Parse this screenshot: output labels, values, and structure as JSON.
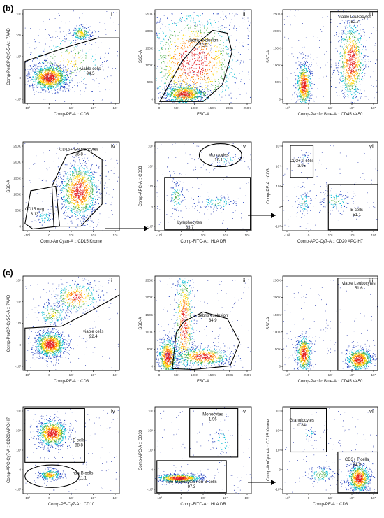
{
  "figure": {
    "sections": [
      {
        "label": "(b)",
        "top": 0
      },
      {
        "label": "(c)",
        "top": 378
      }
    ]
  },
  "chart_data": [
    {
      "id": "b-i",
      "type": "scatter",
      "panel": "(b)",
      "roman": "i",
      "xlabel": "Comp-PE-A :: CD3",
      "ylabel": "Comp-PerCP-Cy5-5-A :: 7AAD",
      "xticks": [
        "-10³",
        "0",
        "10³",
        "10⁴",
        "10⁵"
      ],
      "yticks": [
        "-10³",
        "0",
        "10³",
        "10⁴",
        "10⁵"
      ],
      "gates": [
        {
          "name": "viable cells",
          "value": "94.5"
        }
      ],
      "clusters": [
        {
          "x": 0.27,
          "y": 0.72,
          "sx": 0.1,
          "sy": 0.07,
          "n": 1200
        },
        {
          "x": 0.6,
          "y": 0.25,
          "sx": 0.05,
          "sy": 0.04,
          "n": 250
        },
        {
          "x": 0.45,
          "y": 0.55,
          "sx": 0.2,
          "sy": 0.15,
          "n": 250
        }
      ]
    },
    {
      "id": "b-ii",
      "type": "scatter",
      "panel": "(b)",
      "roman": "ii",
      "xlabel": "FSC-A",
      "ylabel": "SSC-A",
      "xticks": [
        "0",
        "50K",
        "100K",
        "150K",
        "200K",
        "250K"
      ],
      "yticks": [
        "0",
        "50K",
        "100K",
        "150K",
        "200K",
        "250K"
      ],
      "gates": [
        {
          "name": "debris exclusion",
          "value": "72.9"
        }
      ],
      "clusters": [
        {
          "x": 0.3,
          "y": 0.9,
          "sx": 0.1,
          "sy": 0.05,
          "n": 800
        },
        {
          "x": 0.4,
          "y": 0.55,
          "sx": 0.25,
          "sy": 0.28,
          "n": 1400
        }
      ]
    },
    {
      "id": "b-iii",
      "type": "scatter",
      "panel": "(b)",
      "roman": "iii",
      "xlabel": "Comp-Pacific Blue-A :: CD45 V450",
      "ylabel": "SSC-A",
      "xticks": [
        "-10³",
        "0",
        "10³",
        "10⁴",
        "10⁵"
      ],
      "yticks": [
        "0",
        "50K",
        "100K",
        "150K",
        "200K",
        "250K"
      ],
      "gates": [
        {
          "name": "viable Leukocytes",
          "value": "52.7"
        }
      ],
      "clusters": [
        {
          "x": 0.22,
          "y": 0.8,
          "sx": 0.04,
          "sy": 0.12,
          "n": 700
        },
        {
          "x": 0.72,
          "y": 0.55,
          "sx": 0.07,
          "sy": 0.22,
          "n": 900
        }
      ]
    },
    {
      "id": "b-iv",
      "type": "scatter",
      "panel": "(b)",
      "roman": "iv",
      "xlabel": "Comp-AmCyan-A :: CD15 Krome",
      "ylabel": "SSC-A",
      "xticks": [
        "-10³",
        "0",
        "10³",
        "10⁴",
        "10⁵"
      ],
      "yticks": [
        "0",
        "50K",
        "100K",
        "150K",
        "200K",
        "250K"
      ],
      "gates": [
        {
          "name": "CD15+ Granulocytes",
          "value": "96.8"
        },
        {
          "name": "CD15 neg",
          "value": "3.13"
        }
      ],
      "clusters": [
        {
          "x": 0.58,
          "y": 0.55,
          "sx": 0.1,
          "sy": 0.16,
          "n": 1200
        },
        {
          "x": 0.22,
          "y": 0.85,
          "sx": 0.05,
          "sy": 0.05,
          "n": 60
        }
      ]
    },
    {
      "id": "b-v",
      "type": "scatter",
      "panel": "(b)",
      "roman": "v",
      "xlabel": "Comp-FITC-A :: HLA DR",
      "ylabel": "Comp-APC-A :: CD33",
      "xticks": [
        "-10³",
        "0",
        "10³",
        "10⁴",
        "10⁵"
      ],
      "yticks": [
        "-10³",
        "0",
        "10³",
        "10⁴",
        "10⁵"
      ],
      "gates": [
        {
          "name": "Monocytes",
          "value": "16.1"
        },
        {
          "name": "Lymphocytes",
          "value": "83.7"
        }
      ],
      "clusters": [
        {
          "x": 0.22,
          "y": 0.62,
          "sx": 0.04,
          "sy": 0.1,
          "n": 120
        },
        {
          "x": 0.65,
          "y": 0.68,
          "sx": 0.1,
          "sy": 0.04,
          "n": 120
        },
        {
          "x": 0.72,
          "y": 0.2,
          "sx": 0.08,
          "sy": 0.04,
          "n": 50
        }
      ]
    },
    {
      "id": "b-vi",
      "type": "scatter",
      "panel": "(b)",
      "roman": "vi",
      "xlabel": "Comp-APC-Cy7-A :: CD20 APC-H7",
      "ylabel": "Comp-PE-A :: CD3",
      "xticks": [
        "-10³",
        "0",
        "10³",
        "10⁴",
        "10⁵"
      ],
      "yticks": [
        "-10³",
        "0",
        "10³",
        "10⁴",
        "10⁵"
      ],
      "gates": [
        {
          "name": "CD3+ T cells",
          "value": "3.95"
        },
        {
          "name": "B cells",
          "value": "51.1"
        }
      ],
      "clusters": [
        {
          "x": 0.22,
          "y": 0.68,
          "sx": 0.04,
          "sy": 0.08,
          "n": 80
        },
        {
          "x": 0.55,
          "y": 0.66,
          "sx": 0.08,
          "sy": 0.06,
          "n": 110
        },
        {
          "x": 0.22,
          "y": 0.18,
          "sx": 0.03,
          "sy": 0.04,
          "n": 25
        }
      ]
    },
    {
      "id": "c-i",
      "type": "scatter",
      "panel": "(c)",
      "roman": "i",
      "xlabel": "Comp-PE-A :: CD3",
      "ylabel": "Comp-PerCP-Cy5-5-A :: 7AAD",
      "xticks": [
        "-10³",
        "0",
        "10³",
        "10⁴",
        "10⁵"
      ],
      "yticks": [
        "-10³",
        "0",
        "10³",
        "10⁴",
        "10⁵"
      ],
      "gates": [
        {
          "name": "viable cells",
          "value": "92.4"
        }
      ],
      "clusters": [
        {
          "x": 0.28,
          "y": 0.72,
          "sx": 0.08,
          "sy": 0.07,
          "n": 1100
        },
        {
          "x": 0.55,
          "y": 0.22,
          "sx": 0.12,
          "sy": 0.08,
          "n": 400
        },
        {
          "x": 0.3,
          "y": 0.4,
          "sx": 0.08,
          "sy": 0.06,
          "n": 200
        }
      ]
    },
    {
      "id": "c-ii",
      "type": "scatter",
      "panel": "(c)",
      "roman": "ii",
      "xlabel": "FSC-A",
      "ylabel": "SSC-A",
      "xticks": [
        "0",
        "50K",
        "100K",
        "150K",
        "200K",
        "250K"
      ],
      "yticks": [
        "0",
        "50K",
        "100K",
        "150K",
        "200K",
        "250K"
      ],
      "gates": [
        {
          "name": "debris exclusion",
          "value": "34.9"
        }
      ],
      "clusters": [
        {
          "x": 0.13,
          "y": 0.85,
          "sx": 0.05,
          "sy": 0.1,
          "n": 700
        },
        {
          "x": 0.3,
          "y": 0.5,
          "sx": 0.05,
          "sy": 0.3,
          "n": 700
        },
        {
          "x": 0.5,
          "y": 0.85,
          "sx": 0.14,
          "sy": 0.05,
          "n": 600
        }
      ]
    },
    {
      "id": "c-iii",
      "type": "scatter",
      "panel": "(c)",
      "roman": "iii",
      "xlabel": "Comp-Pacific Blue-A :: CD45 V450",
      "ylabel": "SSC-A",
      "xticks": [
        "-10³",
        "0",
        "10³",
        "10⁴",
        "10⁵"
      ],
      "yticks": [
        "0",
        "50K",
        "100K",
        "150K",
        "200K",
        "250K"
      ],
      "gates": [
        {
          "name": "viable Leukocytes",
          "value": "51.6"
        }
      ],
      "clusters": [
        {
          "x": 0.22,
          "y": 0.82,
          "sx": 0.04,
          "sy": 0.1,
          "n": 600
        },
        {
          "x": 0.8,
          "y": 0.88,
          "sx": 0.07,
          "sy": 0.06,
          "n": 700
        }
      ]
    },
    {
      "id": "c-iv",
      "type": "scatter",
      "panel": "(c)",
      "roman": "iv",
      "xlabel": "Comp-PE-Cy7-A :: CD10",
      "ylabel": "Comp-APC-Cy7-A :: CD20 APC-H7",
      "xticks": [
        "-10³",
        "0",
        "10³",
        "10⁴",
        "10⁵"
      ],
      "yticks": [
        "-10³",
        "0",
        "10³",
        "10⁴",
        "10⁵"
      ],
      "gates": [
        {
          "name": "B cells",
          "value": "88.8"
        },
        {
          "name": "non-B cells",
          "value": "11.1"
        }
      ],
      "clusters": [
        {
          "x": 0.3,
          "y": 0.3,
          "sx": 0.08,
          "sy": 0.08,
          "n": 900
        },
        {
          "x": 0.28,
          "y": 0.78,
          "sx": 0.06,
          "sy": 0.03,
          "n": 300
        }
      ]
    },
    {
      "id": "c-v",
      "type": "scatter",
      "panel": "(c)",
      "roman": "v",
      "xlabel": "Comp-FITC-A :: HLA DR",
      "ylabel": "Comp-APC-A :: CD33",
      "xticks": [
        "-10³",
        "0",
        "10³",
        "10⁴",
        "10⁵"
      ],
      "yticks": [
        "-10³",
        "0",
        "10³",
        "10⁴",
        "10⁵"
      ],
      "gates": [
        {
          "name": "Monocytes",
          "value": "1.96"
        },
        {
          "name": "non-Monocytes non B-cells",
          "value": "97.3"
        }
      ],
      "clusters": [
        {
          "x": 0.25,
          "y": 0.82,
          "sx": 0.12,
          "sy": 0.025,
          "n": 700
        },
        {
          "x": 0.7,
          "y": 0.4,
          "sx": 0.06,
          "sy": 0.1,
          "n": 50
        }
      ]
    },
    {
      "id": "c-vi",
      "type": "scatter",
      "panel": "(c)",
      "roman": "vi",
      "xlabel": "Comp-PE-A :: CD3",
      "ylabel": "Comp-AmCyan-A :: CD15 Krome",
      "xticks": [
        "-10³",
        "0",
        "10³",
        "10⁴",
        "10⁵"
      ],
      "yticks": [
        "-10³",
        "0",
        "10³",
        "10⁴",
        "10⁵"
      ],
      "gates": [
        {
          "name": "Granulocytes",
          "value": "0.84"
        },
        {
          "name": "CD3+ T cells",
          "value": "91.9"
        }
      ],
      "clusters": [
        {
          "x": 0.8,
          "y": 0.82,
          "sx": 0.06,
          "sy": 0.08,
          "n": 800
        },
        {
          "x": 0.4,
          "y": 0.78,
          "sx": 0.07,
          "sy": 0.05,
          "n": 150
        },
        {
          "x": 0.28,
          "y": 0.3,
          "sx": 0.05,
          "sy": 0.03,
          "n": 25
        }
      ]
    }
  ]
}
